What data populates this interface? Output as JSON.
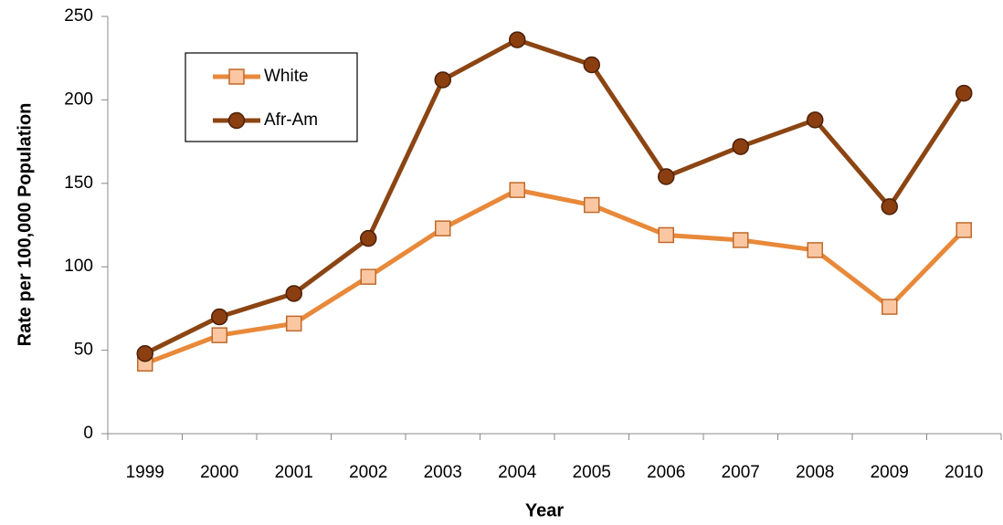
{
  "chart_data": {
    "type": "line",
    "x_label": "Year",
    "y_label": "Rate per 100,000 Population",
    "categories": [
      "1999",
      "2000",
      "2001",
      "2002",
      "2003",
      "2004",
      "2005",
      "2006",
      "2007",
      "2008",
      "2009",
      "2010"
    ],
    "series": [
      {
        "name": "White",
        "color": "#e8893a",
        "marker": "square",
        "marker_fill": "#fbc7a2",
        "marker_stroke": "#c0692a",
        "values": [
          42,
          59,
          66,
          94,
          123,
          146,
          137,
          119,
          116,
          110,
          76,
          122
        ]
      },
      {
        "name": "Afr-Am",
        "color": "#8b4513",
        "marker": "circle",
        "marker_fill": "#8b3e10",
        "marker_stroke": "#4a2008",
        "values": [
          48,
          70,
          84,
          117,
          212,
          236,
          221,
          154,
          172,
          188,
          136,
          204
        ]
      }
    ],
    "ylim": [
      0,
      250
    ],
    "yticks": [
      0,
      50,
      100,
      150,
      200,
      250
    ],
    "grid": false,
    "legend": "upper left"
  }
}
